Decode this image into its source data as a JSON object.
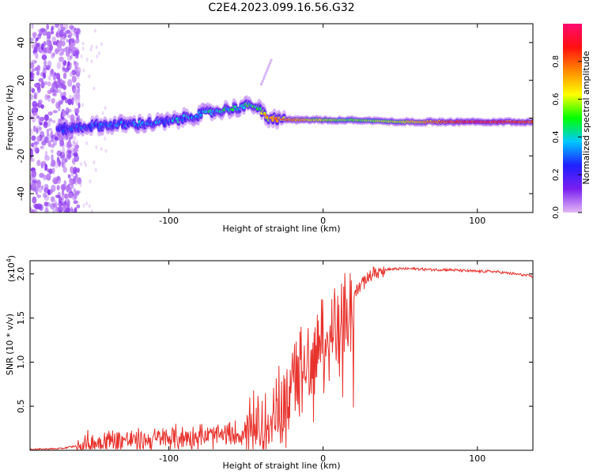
{
  "figure_title": "C2E4.2023.099.16.56.G32",
  "colors": {
    "snr_line": "#e8332d",
    "colormap": [
      "#e4b8f5",
      "#7a1ff0",
      "#1f1fff",
      "#00c8ff",
      "#00ff00",
      "#ffff00",
      "#ff8a00",
      "#ff1010",
      "#ff0a70"
    ]
  },
  "chart_data": [
    {
      "type": "heatmap",
      "name": "spectrogram",
      "xlabel": "Height of straight line (km)",
      "ylabel": "Frequency (Hz)",
      "xlim": [
        -190,
        136
      ],
      "ylim": [
        -50,
        50
      ],
      "xticks": [
        -100,
        0,
        100
      ],
      "yticks": [
        -40,
        -20,
        0,
        20,
        40
      ],
      "grid": false,
      "colorbar": {
        "label": "Normalized spectral amplitude",
        "range": [
          0.0,
          1.0
        ],
        "ticks": [
          "0.0",
          "0.2",
          "0.4",
          "0.6",
          "0.8"
        ],
        "tick_values": [
          0.0,
          0.2,
          0.4,
          0.6,
          0.8
        ]
      },
      "ridge": {
        "description_points_height_km": [
          -170,
          -150,
          -120,
          -100,
          -80,
          -60,
          -45,
          -35,
          -20,
          0,
          20,
          50,
          80,
          100,
          136
        ],
        "frequency_hz": [
          -6,
          -4,
          -3,
          -2,
          2,
          5,
          7,
          0,
          -1,
          -1,
          -1,
          -2,
          -2,
          -2,
          -2
        ],
        "amplitude": [
          0.3,
          0.35,
          0.4,
          0.4,
          0.45,
          0.5,
          0.55,
          0.75,
          0.8,
          0.6,
          0.55,
          0.65,
          0.85,
          0.95,
          0.85
        ]
      }
    },
    {
      "type": "line",
      "name": "snr",
      "xlabel": "Height of straight line (km)",
      "ylabel": "SNR (10 * v/v)",
      "y_multiplier": "(x10",
      "y_multiplier_exp": "4",
      "y_multiplier_close": ")",
      "xlim": [
        -190,
        136
      ],
      "ylim": [
        0,
        2.15
      ],
      "xticks": [
        -100,
        0,
        100
      ],
      "yticks": [
        0.5,
        1.0,
        1.5,
        2.0
      ],
      "ytick_labels": [
        "0.5",
        "1.0",
        "1.5",
        "2.0"
      ],
      "grid": false,
      "series": [
        {
          "x": [
            -190,
            -170,
            -160,
            -150,
            -140,
            -130,
            -120,
            -110,
            -100,
            -90,
            -80,
            -70,
            -60,
            -50,
            -45,
            -40,
            -35,
            -30,
            -25,
            -20,
            -15,
            -10,
            -5,
            0,
            5,
            10,
            15,
            20,
            25,
            30,
            35,
            40,
            50,
            60,
            70,
            80,
            90,
            100,
            110,
            120,
            130,
            136
          ],
          "y": [
            0.01,
            0.02,
            0.05,
            0.09,
            0.13,
            0.13,
            0.12,
            0.13,
            0.15,
            0.16,
            0.17,
            0.17,
            0.19,
            0.2,
            0.25,
            0.3,
            0.4,
            0.5,
            0.65,
            0.8,
            0.95,
            1.05,
            1.15,
            1.25,
            1.35,
            1.45,
            1.6,
            1.78,
            1.9,
            1.98,
            2.03,
            2.05,
            2.06,
            2.06,
            2.05,
            2.05,
            2.04,
            2.03,
            2.03,
            2.01,
            1.99,
            1.97
          ]
        }
      ]
    }
  ]
}
